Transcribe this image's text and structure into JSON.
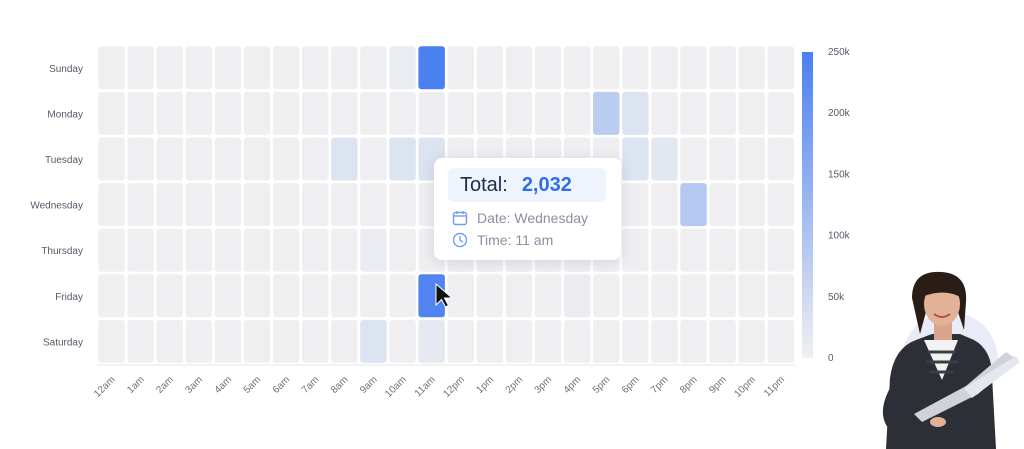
{
  "chart_data": {
    "type": "heatmap",
    "y_categories": [
      "Sunday",
      "Monday",
      "Tuesday",
      "Wednesday",
      "Thursday",
      "Friday",
      "Saturday"
    ],
    "x_categories": [
      "12am",
      "1am",
      "2am",
      "3am",
      "4am",
      "5am",
      "6am",
      "7am",
      "8am",
      "9am",
      "10am",
      "11am",
      "12pm",
      "1pm",
      "2pm",
      "3pm",
      "4pm",
      "5pm",
      "6pm",
      "7pm",
      "8pm",
      "9pm",
      "10pm",
      "11pm"
    ],
    "values": [
      [
        2000,
        2000,
        2000,
        2000,
        2000,
        2000,
        2000,
        2000,
        2000,
        2000,
        10000,
        250000,
        2000,
        2000,
        2000,
        2000,
        2000,
        2000,
        2000,
        2000,
        2000,
        2000,
        2000,
        2000
      ],
      [
        2000,
        2000,
        2000,
        2000,
        2000,
        2000,
        2000,
        2000,
        2000,
        2000,
        2000,
        5000,
        2000,
        2000,
        2000,
        2000,
        2000,
        80000,
        30000,
        2000,
        2000,
        2000,
        2000,
        2000
      ],
      [
        2000,
        2000,
        2000,
        2000,
        2000,
        2000,
        2000,
        2000,
        30000,
        2000,
        30000,
        30000,
        2000,
        2000,
        2000,
        2000,
        2000,
        2000,
        30000,
        20000,
        2000,
        2000,
        2000,
        2000
      ],
      [
        2000,
        2000,
        2000,
        2000,
        2000,
        2000,
        2000,
        2000,
        2000,
        2000,
        2000,
        2032,
        2000,
        2000,
        2000,
        2000,
        2000,
        2000,
        2000,
        2000,
        90000,
        2000,
        2000,
        2000
      ],
      [
        2000,
        2000,
        2000,
        2000,
        2000,
        2000,
        2000,
        2000,
        2000,
        8000,
        2000,
        2000,
        2000,
        2000,
        2000,
        2000,
        2000,
        2000,
        2000,
        2000,
        2000,
        2000,
        2000,
        2000
      ],
      [
        2000,
        2000,
        2000,
        2000,
        2000,
        2000,
        2000,
        2000,
        2000,
        2000,
        2000,
        240000,
        2000,
        2000,
        2000,
        2000,
        8000,
        2000,
        2000,
        2000,
        2000,
        2000,
        2000,
        2000
      ],
      [
        2000,
        2000,
        2000,
        2000,
        2000,
        2000,
        2000,
        2000,
        2000,
        30000,
        2000,
        15000,
        2000,
        2000,
        2000,
        2000,
        2000,
        2000,
        2000,
        2000,
        2000,
        2000,
        2000,
        2000
      ]
    ],
    "color_scale": {
      "min": 0,
      "max": 250000,
      "min_color": "#f0f0f1",
      "max_color": "#4a80f0",
      "tick_labels": [
        "0",
        "50k",
        "100k",
        "150k",
        "200k",
        "250k"
      ],
      "tick_values": [
        0,
        50000,
        100000,
        150000,
        200000,
        250000
      ],
      "placement": "right"
    },
    "highlighted_cell": {
      "day": "Wednesday",
      "hour": "11am"
    }
  },
  "tooltip": {
    "total_label": "Total:",
    "total_value": "2,032",
    "date_text": "Date: Wednesday",
    "time_text": "Time: 11 am",
    "accent_color": "#2f6fe4"
  },
  "icons": {
    "date": "calendar-icon",
    "time": "clock-icon",
    "pointer": "mouse-cursor-icon"
  },
  "decoration": {
    "person": "woman-with-laptop-photo"
  }
}
